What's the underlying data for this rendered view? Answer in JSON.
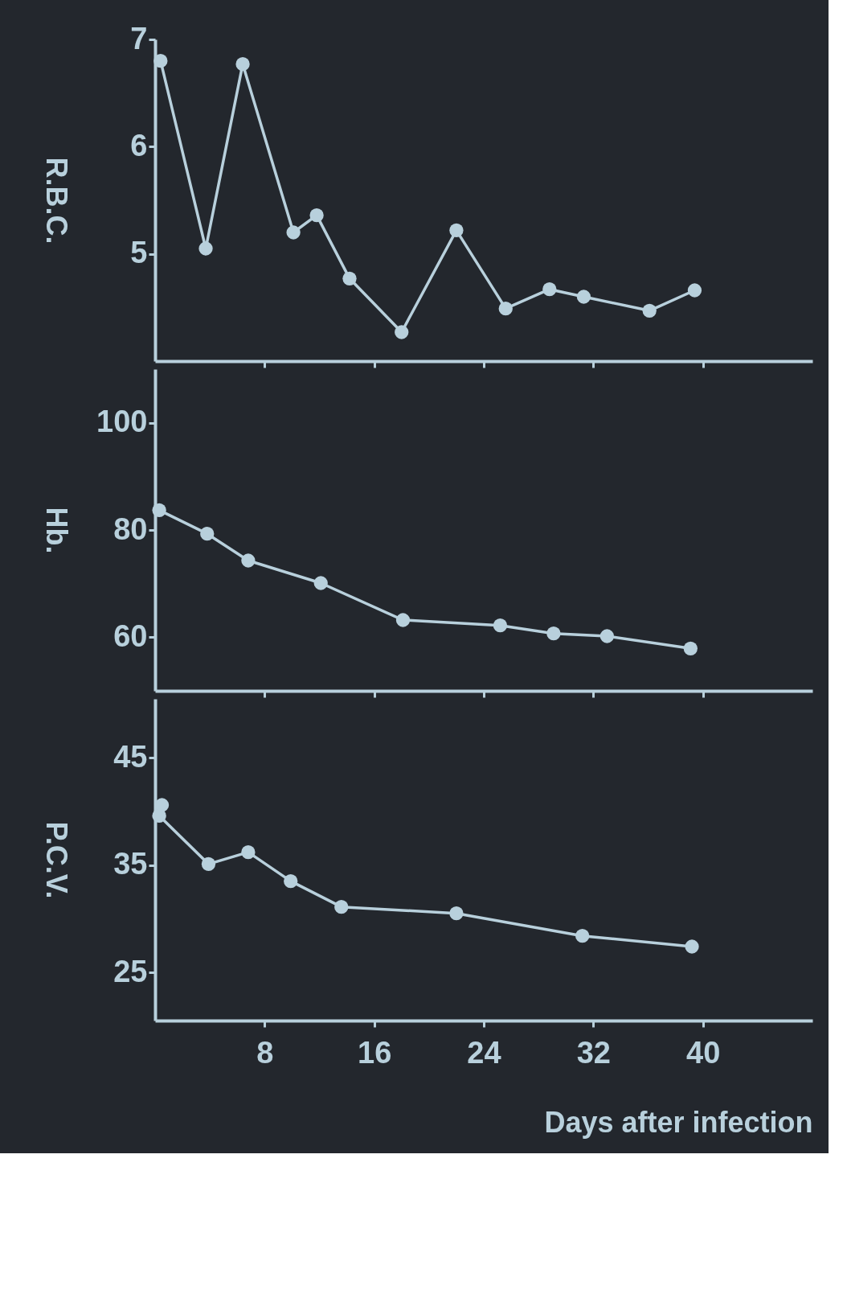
{
  "chart_data": [
    {
      "type": "line",
      "ylabel": "R.B.C.",
      "xlim": [
        0,
        48
      ],
      "xticks": [
        8,
        16,
        24,
        32,
        40
      ],
      "ylim": [
        4,
        7
      ],
      "yticks": [
        5,
        6,
        7
      ],
      "tick_labels": "y",
      "grid": false,
      "marker": "circle",
      "line_style": "solid",
      "series": [
        {
          "color": "#b8d0dc",
          "x": [
            0.4,
            3.7,
            6.4,
            10.1,
            11.8,
            14.2,
            18.0,
            22.0,
            25.6,
            28.8,
            31.3,
            36.1,
            39.4
          ],
          "values": [
            6.8,
            5.05,
            6.77,
            5.2,
            5.36,
            4.77,
            4.27,
            5.22,
            4.49,
            4.67,
            4.6,
            4.47,
            4.66
          ]
        }
      ]
    },
    {
      "type": "line",
      "ylabel": "Hb.",
      "xlim": [
        0,
        48
      ],
      "xticks": [
        8,
        16,
        24,
        32,
        40
      ],
      "ylim": [
        50,
        110
      ],
      "yticks": [
        60,
        80,
        100
      ],
      "tick_labels": "y",
      "grid": false,
      "marker": "circle",
      "line_style": "solid",
      "series": [
        {
          "color": "#b8d0dc",
          "x": [
            0.3,
            3.8,
            6.8,
            12.1,
            18.1,
            25.2,
            29.1,
            33.0,
            39.1
          ],
          "values": [
            83.7,
            79.3,
            74.3,
            70.1,
            63.2,
            62.2,
            60.7,
            60.2,
            57.9
          ]
        }
      ]
    },
    {
      "type": "line",
      "ylabel": "P.C.V.",
      "xlabel": "Days after infection",
      "xlim": [
        0,
        48
      ],
      "xticks": [
        8,
        16,
        24,
        32,
        40
      ],
      "ylim": [
        20.5,
        50.5
      ],
      "yticks": [
        25,
        35,
        45
      ],
      "grid": false,
      "marker": "circle",
      "line_style": "solid",
      "series": [
        {
          "color": "#b8d0dc",
          "x": [
            0.5,
            0.3,
            3.9,
            6.8,
            9.9,
            13.6,
            22.0,
            31.2,
            39.2
          ],
          "values": [
            40.6,
            39.6,
            35.1,
            36.2,
            33.5,
            31.1,
            30.5,
            28.4,
            27.4
          ]
        }
      ]
    }
  ]
}
